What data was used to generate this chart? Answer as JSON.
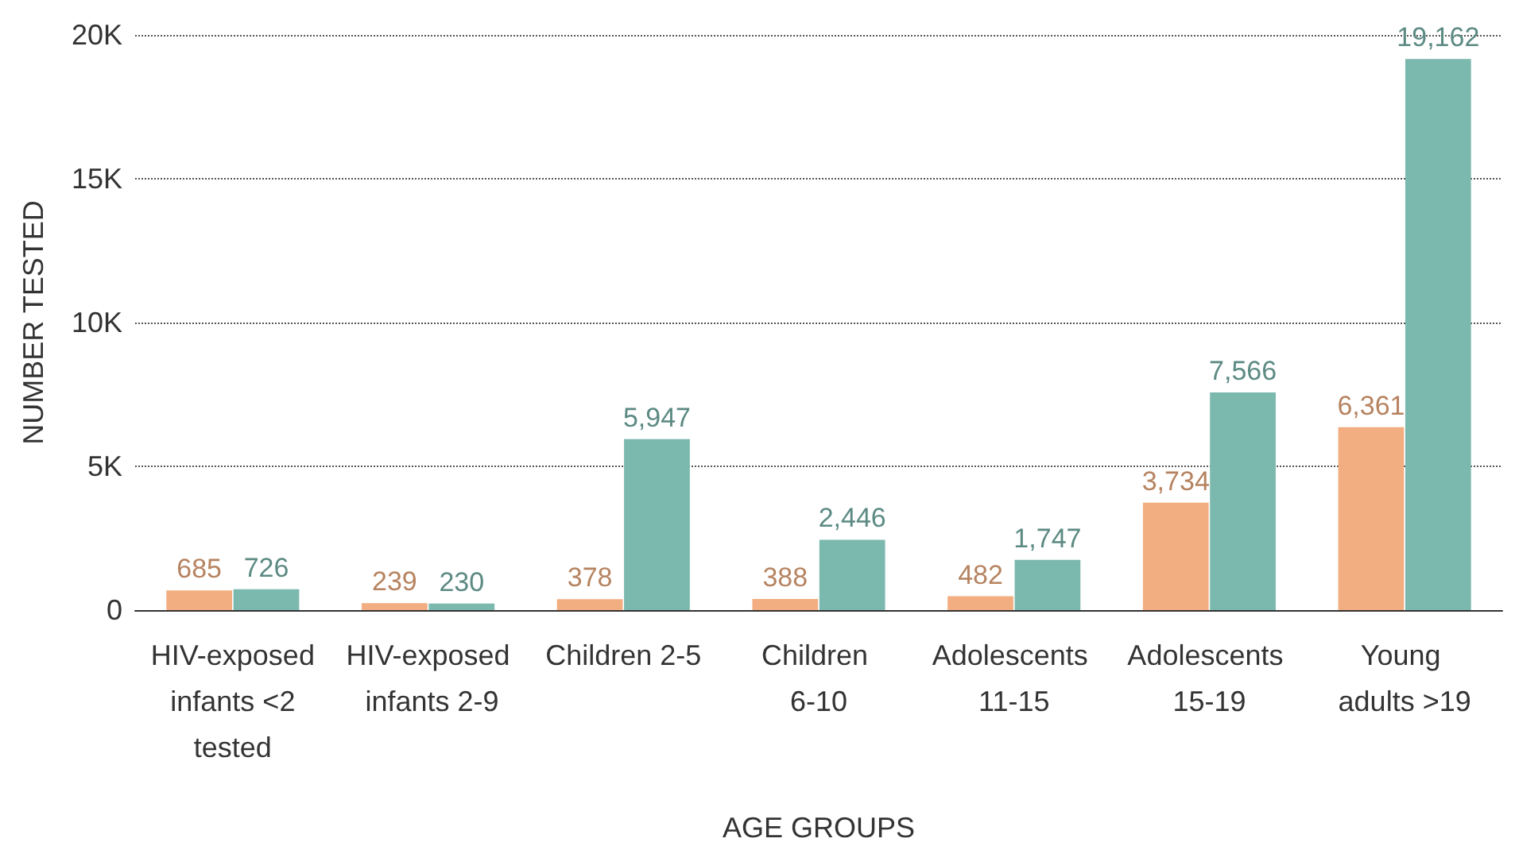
{
  "chart_data": {
    "type": "bar",
    "xlabel": "AGE GROUPS",
    "ylabel": "NUMBER TESTED",
    "categories": [
      "HIV-exposed infants <2 tested",
      "HIV-exposed infants 2-9",
      "Children 2-5",
      "Children 6-10",
      "Adolescents 11-15",
      "Adolescents 15-19",
      "Young adults >19"
    ],
    "series": [
      {
        "color": "#f2ae80",
        "values": [
          685,
          239,
          378,
          388,
          482,
          3734,
          6361
        ],
        "value_labels": [
          "685",
          "239",
          "378",
          "388",
          "482",
          "3,734",
          "6,361"
        ]
      },
      {
        "color": "#7bb8ae",
        "values": [
          726,
          230,
          5947,
          2446,
          1747,
          7566,
          19162
        ],
        "value_labels": [
          "726",
          "230",
          "5,947",
          "2,446",
          "1,747",
          "7,566",
          "19,162"
        ]
      }
    ],
    "ylim": [
      0,
      20000
    ],
    "yticks": [
      0,
      {
        "value": 5000,
        "label": "5K"
      },
      {
        "value": 10000,
        "label": "10K"
      },
      {
        "value": 15000,
        "label": "15K"
      },
      {
        "value": 20000,
        "label": "20K"
      }
    ],
    "grid": "y"
  }
}
